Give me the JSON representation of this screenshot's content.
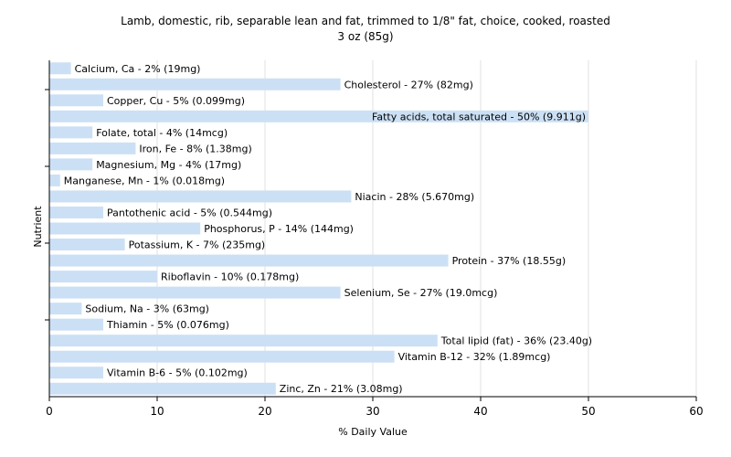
{
  "chart_data": {
    "type": "bar",
    "orientation": "horizontal",
    "title": "Lamb, domestic, rib, separable lean and fat, trimmed to 1/8\" fat, choice, cooked, roasted",
    "subtitle": "3 oz (85g)",
    "xlabel": "% Daily Value",
    "ylabel": "Nutrient",
    "xlim": [
      0,
      60
    ],
    "xticks": [
      0,
      10,
      20,
      30,
      40,
      50,
      60
    ],
    "grid": "vertical",
    "bar_color": "#cce0f5",
    "categories": [
      "Calcium, Ca",
      "Cholesterol",
      "Copper, Cu",
      "Fatty acids, total saturated",
      "Folate, total",
      "Iron, Fe",
      "Magnesium, Mg",
      "Manganese, Mn",
      "Niacin",
      "Pantothenic acid",
      "Phosphorus, P",
      "Potassium, K",
      "Protein",
      "Riboflavin",
      "Selenium, Se",
      "Sodium, Na",
      "Thiamin",
      "Total lipid (fat)",
      "Vitamin B-12",
      "Vitamin B-6",
      "Zinc, Zn"
    ],
    "values": [
      2,
      27,
      5,
      50,
      4,
      8,
      4,
      1,
      28,
      5,
      14,
      7,
      37,
      10,
      27,
      3,
      5,
      36,
      32,
      5,
      21
    ],
    "labels": [
      "Calcium, Ca - 2% (19mg)",
      "Cholesterol - 27% (82mg)",
      "Copper, Cu - 5% (0.099mg)",
      "Fatty acids, total saturated - 50% (9.911g)",
      "Folate, total - 4% (14mcg)",
      "Iron, Fe - 8% (1.38mg)",
      "Magnesium, Mg - 4% (17mg)",
      "Manganese, Mn - 1% (0.018mg)",
      "Niacin - 28% (5.670mg)",
      "Pantothenic acid - 5% (0.544mg)",
      "Phosphorus, P - 14% (144mg)",
      "Potassium, K - 7% (235mg)",
      "Protein - 37% (18.55g)",
      "Riboflavin - 10% (0.178mg)",
      "Selenium, Se - 27% (19.0mcg)",
      "Sodium, Na - 3% (63mg)",
      "Thiamin - 5% (0.076mg)",
      "Total lipid (fat) - 36% (23.40g)",
      "Vitamin B-12 - 32% (1.89mcg)",
      "Vitamin B-6 - 5% (0.102mg)",
      "Zinc, Zn - 21% (3.08mg)"
    ]
  }
}
